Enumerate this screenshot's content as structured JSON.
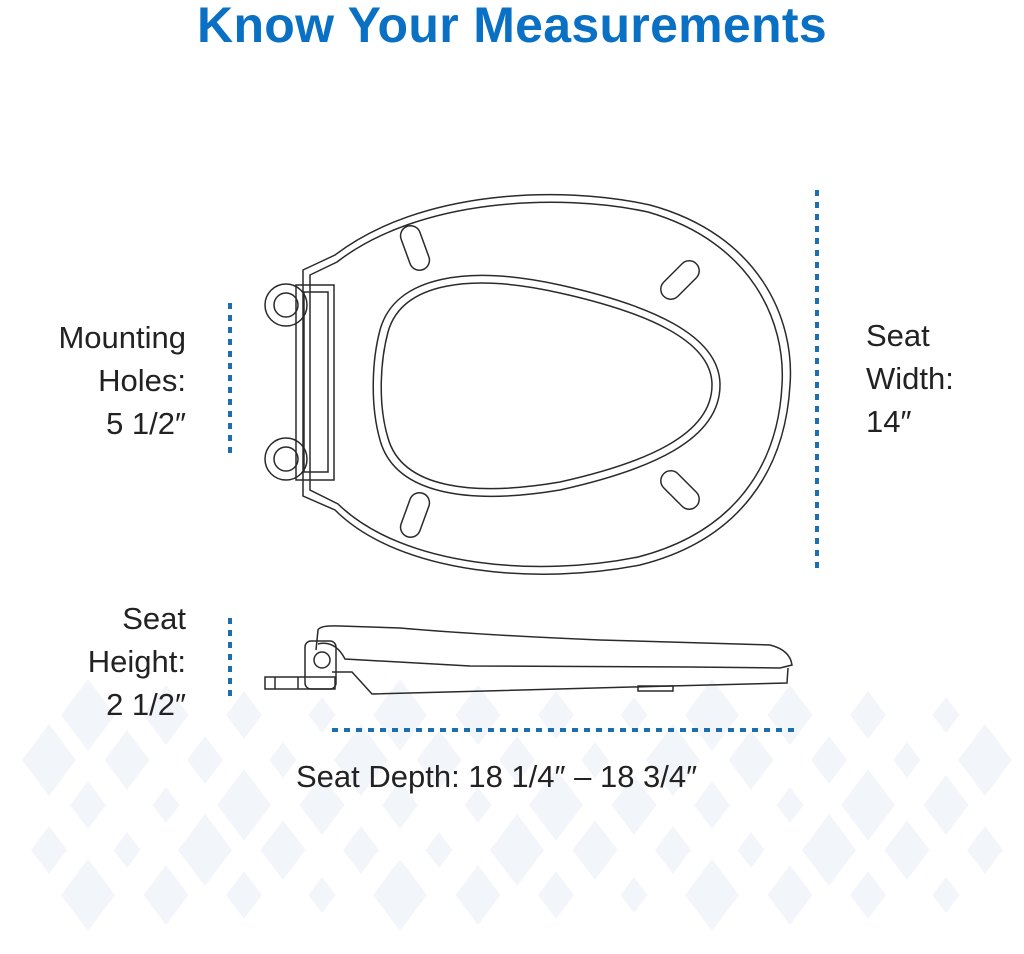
{
  "title": "Know Your Measurements",
  "colors": {
    "title": "#0a70c4",
    "dimension_line": "#1b6fb1",
    "outline": "#2a2a2a",
    "pattern": "#f2f6fa"
  },
  "labels": {
    "mounting_holes": [
      "Mounting",
      "Holes:",
      "5 1/2″"
    ],
    "seat_width": [
      "Seat",
      "Width:",
      "14″"
    ],
    "seat_height": [
      "Seat",
      "Height:",
      "2 1/2″"
    ],
    "seat_depth": "Seat Depth: 18 1/4″ – 18 3/4″"
  }
}
